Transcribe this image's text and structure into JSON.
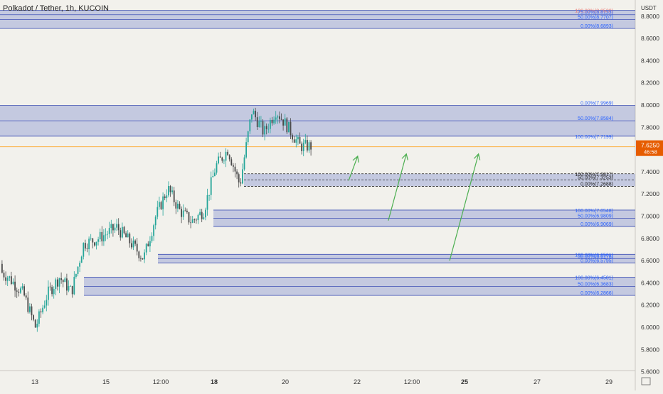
{
  "header": {
    "title": "Polkadot / Tether, 1h, KUCOIN"
  },
  "price_axis": {
    "unit": "USDT",
    "ticks": [
      "8.8000",
      "8.6000",
      "8.4000",
      "8.2000",
      "8.0000",
      "7.8000",
      "7.6000",
      "7.4000",
      "7.2000",
      "7.0000",
      "6.8000",
      "6.6000",
      "6.4000",
      "6.2000",
      "6.0000",
      "5.8000",
      "5.6000"
    ],
    "current_price": "7.6250",
    "countdown": "46:58"
  },
  "time_axis": {
    "ticks": [
      "13",
      "15",
      "12:00",
      "18",
      "20",
      "22",
      "12:00",
      "25",
      "27",
      "29"
    ],
    "bold": [
      "18",
      "25"
    ]
  },
  "colors": {
    "background": "#f2f1ec",
    "zone_fill": "rgba(91,108,196,0.30)",
    "zone_border": "#3f51b5",
    "fib_label": "#2962ff",
    "candle_up": "#26a69a",
    "candle_down": "#4a4a4a",
    "arrow": "#4caf50",
    "price_line": "#ff9800",
    "price_tag": "#e65c00"
  },
  "chart_data": {
    "type": "candlestick",
    "title": "Polkadot / Tether, 1h, KUCOIN",
    "ylabel": "USDT",
    "ylim": [
      5.6,
      8.95
    ],
    "last_price": 7.625,
    "price_path": [
      {
        "date": "12",
        "price": 6.57
      },
      {
        "date": "12",
        "price": 6.45
      },
      {
        "date": "13",
        "price": 6.3
      },
      {
        "date": "13",
        "price": 6.0
      },
      {
        "date": "13",
        "price": 6.3
      },
      {
        "date": "14",
        "price": 6.45
      },
      {
        "date": "14",
        "price": 6.32
      },
      {
        "date": "14",
        "price": 6.75
      },
      {
        "date": "15",
        "price": 6.8
      },
      {
        "date": "15",
        "price": 6.9
      },
      {
        "date": "16",
        "price": 6.75
      },
      {
        "date": "16",
        "price": 6.62
      },
      {
        "date": "16",
        "price": 7.0
      },
      {
        "date": "17",
        "price": 7.25
      },
      {
        "date": "17",
        "price": 7.05
      },
      {
        "date": "17",
        "price": 6.95
      },
      {
        "date": "18",
        "price": 7.05
      },
      {
        "date": "18",
        "price": 7.45
      },
      {
        "date": "18",
        "price": 7.6
      },
      {
        "date": "19",
        "price": 7.28
      },
      {
        "date": "19",
        "price": 7.95
      },
      {
        "date": "19",
        "price": 7.75
      },
      {
        "date": "20",
        "price": 7.95
      },
      {
        "date": "20",
        "price": 7.8
      },
      {
        "date": "20",
        "price": 7.63
      }
    ],
    "fib_zones": [
      {
        "levels": [
          {
            "label": "100.00%(8.8530)",
            "price": 8.853,
            "color": "#e57373"
          },
          {
            "label": "75.00%(8.8133)",
            "price": 8.8133
          },
          {
            "label": "50.00%(8.7707)",
            "price": 8.7707
          },
          {
            "label": "0.00%(8.6893)",
            "price": 8.6893
          }
        ]
      },
      {
        "levels": [
          {
            "label": "0.00%(7.9969)",
            "price": 7.9969
          },
          {
            "label": "50.00%(7.8584)",
            "price": 7.8584
          },
          {
            "label": "100.00%(7.7199)",
            "price": 7.7199
          }
        ]
      },
      {
        "levels": [
          {
            "label": "100.00%(7.3817)",
            "price": 7.3817,
            "color": "#222222"
          },
          {
            "label": "50.00%(7.3253)",
            "price": 7.3253,
            "color": "#222222"
          },
          {
            "label": "0.00%(7.2688)",
            "price": 7.2688,
            "color": "#222222"
          }
        ],
        "dashed": true
      },
      {
        "levels": [
          {
            "label": "100.00%(7.0548)",
            "price": 7.0548
          },
          {
            "label": "50.00%(6.9809)",
            "price": 6.9809
          },
          {
            "label": "0.00%(6.9069)",
            "price": 6.9069
          }
        ]
      },
      {
        "levels": [
          {
            "label": "100.00%(6.6561)",
            "price": 6.6561
          },
          {
            "label": "50.00%(6.6178)",
            "price": 6.6178
          },
          {
            "label": "0.00%(6.5795)",
            "price": 6.5795
          }
        ]
      },
      {
        "levels": [
          {
            "label": "100.00%(6.4501)",
            "price": 6.4501
          },
          {
            "label": "50.00%(6.3683)",
            "price": 6.3683
          },
          {
            "label": "0.00%(6.2866)",
            "price": 6.2866
          }
        ]
      }
    ],
    "arrows": [
      {
        "from_date": "21.7",
        "from_price": 7.32,
        "to_date": "21.95",
        "to_price": 7.54
      },
      {
        "from_date": "22.8",
        "from_price": 6.96,
        "to_date": "23.3",
        "to_price": 7.56
      },
      {
        "from_date": "24.5",
        "from_price": 6.6,
        "to_date": "25.3",
        "to_price": 7.56
      }
    ]
  }
}
